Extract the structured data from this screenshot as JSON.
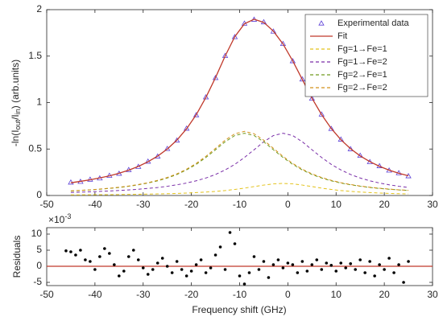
{
  "chart_data": [
    {
      "type": "line",
      "ylabel_parts": [
        "-ln(I",
        "out",
        "/I",
        "in",
        ") (arb.units)"
      ],
      "xlim": [
        -50,
        30
      ],
      "xticks": [
        -50,
        -40,
        -30,
        -20,
        -10,
        0,
        10,
        20,
        30
      ],
      "ylim": [
        0,
        2
      ],
      "yticks": [
        0,
        0.5,
        1,
        1.5,
        2
      ],
      "legend": "upper right",
      "x": [
        -45,
        -43,
        -41,
        -39,
        -37,
        -35,
        -33,
        -31,
        -29,
        -27,
        -25,
        -23,
        -21,
        -19,
        -17,
        -15,
        -13,
        -11,
        -9,
        -7,
        -5,
        -3,
        -1,
        1,
        3,
        5,
        7,
        9,
        11,
        13,
        15,
        17,
        19,
        21,
        23,
        25
      ],
      "series": [
        {
          "name": "Experimental data",
          "color": "#5b3fd6",
          "marker": "triangle",
          "values": [
            0.141,
            0.149,
            0.172,
            0.186,
            0.214,
            0.236,
            0.276,
            0.31,
            0.366,
            0.421,
            0.503,
            0.593,
            0.721,
            0.866,
            1.058,
            1.266,
            1.504,
            1.706,
            1.851,
            1.894,
            1.866,
            1.766,
            1.633,
            1.447,
            1.251,
            1.044,
            0.873,
            0.718,
            0.603,
            0.5,
            0.429,
            0.361,
            0.317,
            0.27,
            0.242,
            0.209
          ]
        },
        {
          "name": "Fit",
          "color": "#c0392b",
          "linestyle": "solid",
          "values": [
            0.137,
            0.152,
            0.169,
            0.189,
            0.211,
            0.239,
            0.273,
            0.313,
            0.363,
            0.424,
            0.5,
            0.596,
            0.718,
            0.869,
            1.055,
            1.269,
            1.501,
            1.709,
            1.848,
            1.897,
            1.863,
            1.769,
            1.63,
            1.45,
            1.248,
            1.047,
            0.87,
            0.721,
            0.6,
            0.503,
            0.426,
            0.364,
            0.314,
            0.273,
            0.239,
            0.212
          ]
        },
        {
          "name": "Fg=1→Fe=1",
          "color": "#e3c21a",
          "linestyle": "dashed",
          "values": [
            0.006,
            0.007,
            0.008,
            0.009,
            0.009,
            0.01,
            0.012,
            0.013,
            0.015,
            0.017,
            0.019,
            0.022,
            0.026,
            0.031,
            0.037,
            0.044,
            0.053,
            0.065,
            0.079,
            0.096,
            0.112,
            0.125,
            0.13,
            0.125,
            0.112,
            0.096,
            0.079,
            0.065,
            0.053,
            0.044,
            0.037,
            0.031,
            0.026,
            0.022,
            0.019,
            0.017
          ]
        },
        {
          "name": "Fg=1→Fe=2",
          "color": "#7a2fa8",
          "linestyle": "dashed",
          "values": [
            0.033,
            0.036,
            0.04,
            0.044,
            0.048,
            0.054,
            0.06,
            0.067,
            0.076,
            0.086,
            0.099,
            0.115,
            0.134,
            0.158,
            0.188,
            0.226,
            0.275,
            0.335,
            0.409,
            0.492,
            0.578,
            0.645,
            0.67,
            0.645,
            0.578,
            0.492,
            0.409,
            0.335,
            0.275,
            0.226,
            0.188,
            0.158,
            0.134,
            0.115,
            0.099,
            0.086
          ]
        },
        {
          "name": "Fg=2→Fe=1",
          "color": "#6f9a1e",
          "linestyle": "dashed",
          "values": [
            0.048,
            0.054,
            0.06,
            0.067,
            0.076,
            0.086,
            0.099,
            0.115,
            0.134,
            0.158,
            0.188,
            0.226,
            0.275,
            0.335,
            0.409,
            0.492,
            0.578,
            0.645,
            0.67,
            0.645,
            0.578,
            0.492,
            0.409,
            0.335,
            0.275,
            0.226,
            0.188,
            0.158,
            0.134,
            0.115,
            0.099,
            0.086,
            0.076,
            0.067,
            0.06,
            0.054
          ]
        },
        {
          "name": "Fg=2→Fe=2",
          "color": "#d2901a",
          "linestyle": "dashed",
          "values": [
            0.05,
            0.055,
            0.061,
            0.069,
            0.078,
            0.089,
            0.102,
            0.118,
            0.138,
            0.163,
            0.194,
            0.233,
            0.283,
            0.345,
            0.421,
            0.507,
            0.595,
            0.664,
            0.69,
            0.664,
            0.595,
            0.507,
            0.421,
            0.345,
            0.283,
            0.233,
            0.194,
            0.163,
            0.138,
            0.118,
            0.102,
            0.089,
            0.078,
            0.069,
            0.061,
            0.055
          ]
        }
      ]
    },
    {
      "type": "scatter",
      "xlabel": "Frequency shift (GHz)",
      "ylabel": "Residuals",
      "yscale_base": "×10",
      "yscale_exponent": "-3",
      "xlim": [
        -50,
        30
      ],
      "xticks": [
        -50,
        -40,
        -30,
        -20,
        -10,
        0,
        10,
        20,
        30
      ],
      "ylim": [
        -6,
        12
      ],
      "yticks": [
        -5,
        0,
        5,
        10
      ],
      "color": "#000000",
      "reference_line": {
        "y": 0,
        "color": "#c0392b"
      },
      "x": [
        -46,
        -45,
        -44,
        -43,
        -42,
        -41,
        -40,
        -39,
        -38,
        -37,
        -36,
        -35,
        -34,
        -33,
        -32,
        -31,
        -30,
        -29,
        -28,
        -27,
        -26,
        -25,
        -24,
        -23,
        -22,
        -21,
        -20,
        -19,
        -18,
        -17,
        -16,
        -15,
        -14,
        -13,
        -12,
        -11,
        -10,
        -9,
        -8,
        -7,
        -6,
        -5,
        -4,
        -3,
        -2,
        -1,
        0,
        1,
        2,
        3,
        4,
        5,
        6,
        7,
        8,
        9,
        10,
        11,
        12,
        13,
        14,
        15,
        16,
        17,
        18,
        19,
        20,
        21,
        22,
        23,
        24,
        25
      ],
      "values": [
        4.8,
        4.5,
        3.5,
        5,
        2,
        1.5,
        -1,
        3,
        5.5,
        4,
        0.5,
        -3,
        -1.5,
        3,
        5,
        2,
        -0.5,
        -2.5,
        -1,
        1,
        2.5,
        0,
        -2,
        1.5,
        -1,
        -3,
        -1.5,
        0.5,
        2,
        -2,
        -0.5,
        3.5,
        6,
        -1,
        10.5,
        7,
        -3,
        -5.5,
        -2,
        3,
        -1,
        1.5,
        -3.5,
        0.5,
        2,
        -0.5,
        1,
        0.5,
        -2,
        1.5,
        -1.5,
        0.5,
        2,
        -1,
        1,
        0.3,
        -1.5,
        1,
        -0.5,
        0.8,
        -1,
        2,
        -2,
        1.5,
        -3,
        0.5,
        -1,
        2.5,
        -2,
        0.5,
        -5,
        1.5
      ]
    }
  ]
}
